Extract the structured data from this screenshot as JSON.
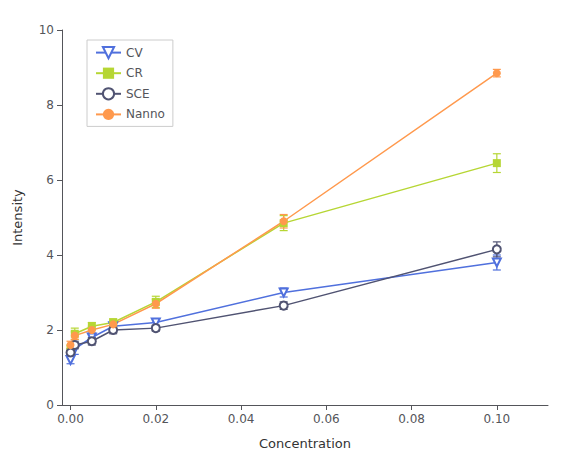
{
  "chart_data": {
    "type": "line",
    "x": [
      0.0,
      0.001,
      0.005,
      0.01,
      0.02,
      0.05,
      0.1
    ],
    "series": [
      {
        "name": "CV",
        "marker": "triangle-down-open",
        "values": [
          1.2,
          1.5,
          1.8,
          2.1,
          2.2,
          3.0,
          3.8
        ],
        "yerr": [
          0.1,
          0.15,
          0.12,
          0.1,
          0.1,
          0.12,
          0.2
        ]
      },
      {
        "name": "CR",
        "marker": "square",
        "values": [
          1.5,
          1.9,
          2.1,
          2.2,
          2.75,
          4.85,
          6.45
        ],
        "yerr": [
          0.1,
          0.15,
          0.1,
          0.1,
          0.15,
          0.2,
          0.25
        ]
      },
      {
        "name": "SCE",
        "marker": "circle-open",
        "values": [
          1.4,
          1.6,
          1.7,
          2.0,
          2.05,
          2.65,
          4.15
        ],
        "yerr": [
          0.1,
          0.1,
          0.1,
          0.1,
          0.08,
          0.1,
          0.2
        ]
      },
      {
        "name": "Nanno",
        "marker": "circle",
        "values": [
          1.6,
          1.85,
          2.0,
          2.15,
          2.7,
          4.9,
          8.85
        ],
        "yerr": [
          0.1,
          0.1,
          0.1,
          0.1,
          0.12,
          0.18,
          0.1
        ]
      }
    ],
    "xlabel": "Concentration",
    "ylabel": "Intensity",
    "xlim": [
      -0.002,
      0.112
    ],
    "xticks": [
      {
        "value": 0.0,
        "label": "0.00"
      },
      0.02,
      0.04,
      0.06,
      0.08,
      {
        "value": 0.1,
        "label": "0.10"
      }
    ],
    "ylim": [
      0,
      10
    ],
    "yticks": [
      0,
      2,
      4,
      6,
      8,
      10
    ],
    "grid": false,
    "legend": "upper left"
  }
}
